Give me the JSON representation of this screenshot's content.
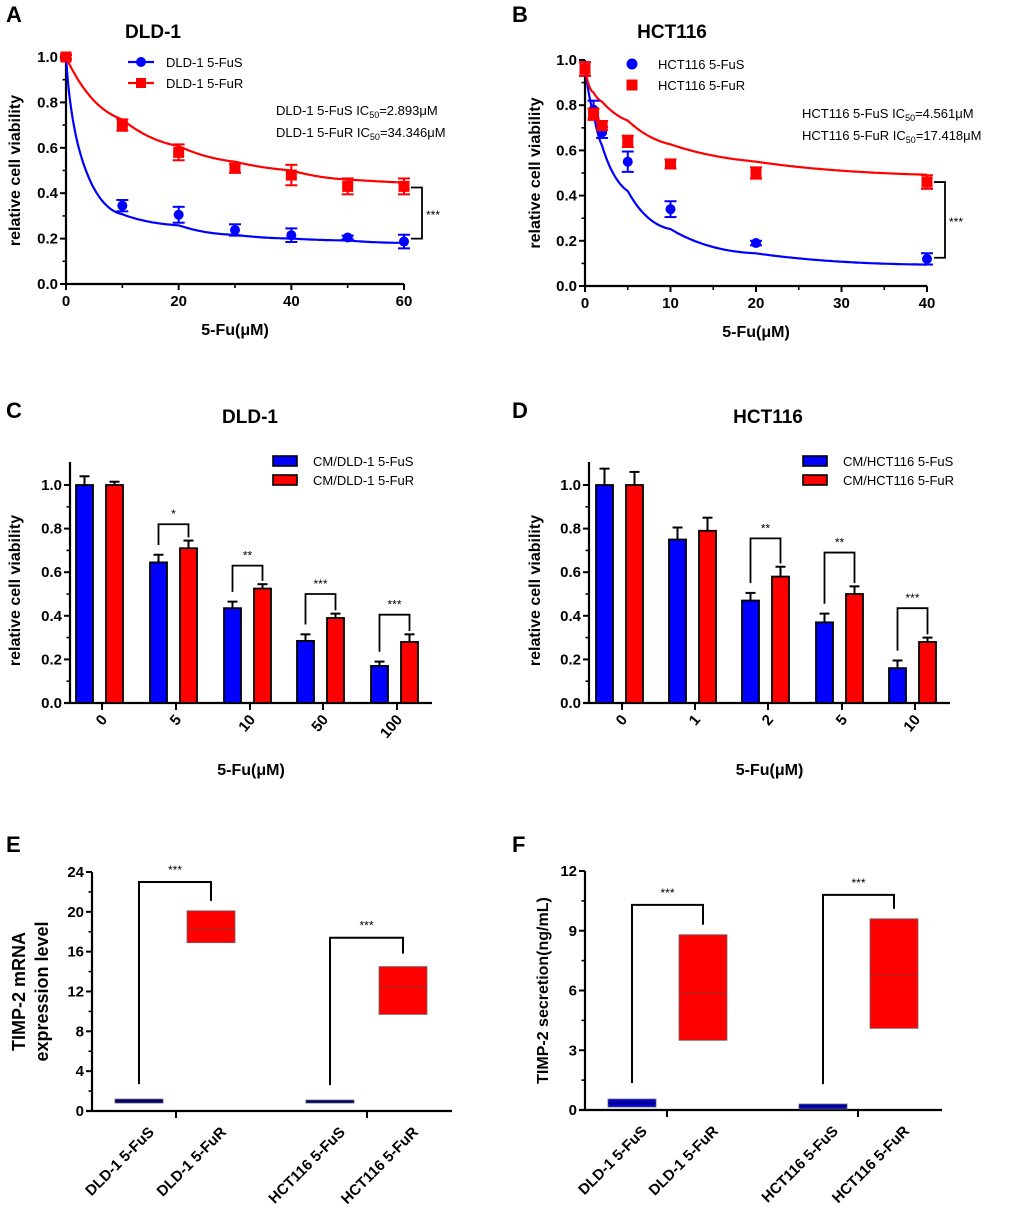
{
  "chart_data": [
    {
      "panel": "A",
      "type": "line",
      "title": "DLD-1",
      "xlabel": "5-Fu(μM)",
      "ylabel": "relative cell viability",
      "xlim": [
        0,
        60
      ],
      "ylim": [
        0,
        1.0
      ],
      "xticks": [
        "0",
        "20",
        "40",
        "60"
      ],
      "xtick_values": [
        0,
        20,
        40,
        60
      ],
      "xminor_values": [
        10,
        30,
        50
      ],
      "yticks": [
        "0.0",
        "0.2",
        "0.4",
        "0.6",
        "0.8",
        "1.0"
      ],
      "ytick_values": [
        0,
        0.2,
        0.4,
        0.6,
        0.8,
        1.0
      ],
      "legend_placement": "top-center",
      "legend_style": "line-marker",
      "x": [
        0,
        10,
        20,
        30,
        40,
        50,
        60
      ],
      "series": [
        {
          "name": "DLD-1 5-FuS",
          "color": "#0000ff",
          "marker": "circle",
          "values": [
            1.0,
            0.345,
            0.305,
            0.238,
            0.215,
            0.205,
            0.187
          ],
          "errors": [
            0.01,
            0.025,
            0.035,
            0.025,
            0.03,
            0.008,
            0.03
          ],
          "fit_ic50": 2.893,
          "fit_bottom": 0.15
        },
        {
          "name": "DLD-1 5-FuR",
          "color": "#ff0000",
          "marker": "square",
          "values": [
            1.0,
            0.7,
            0.58,
            0.51,
            0.48,
            0.43,
            0.43
          ],
          "errors": [
            0.01,
            0.025,
            0.035,
            0.02,
            0.045,
            0.035,
            0.035
          ],
          "fit_ic50": 34.346,
          "fit_bottom": 0.28
        }
      ],
      "annotations": [
        {
          "prefix": "DLD-1 5-FuS IC",
          "sub": "50",
          "suffix": "=2.893μM"
        },
        {
          "prefix": "DLD-1 5-FuR IC",
          "sub": "50",
          "suffix": "=34.346μM"
        }
      ],
      "significance": {
        "label": "***",
        "between": "last points",
        "y1": 0.425,
        "y2": 0.2
      }
    },
    {
      "panel": "B",
      "type": "line",
      "title": "HCT116",
      "xlabel": "5-Fu(μM)",
      "ylabel": "relative cell viability",
      "xlim": [
        0,
        40
      ],
      "ylim": [
        0,
        1.0
      ],
      "xticks": [
        "0",
        "10",
        "20",
        "30",
        "40"
      ],
      "xtick_values": [
        0,
        10,
        20,
        30,
        40
      ],
      "xminor_values": [
        5,
        15,
        25,
        35
      ],
      "yticks": [
        "0.0",
        "0.2",
        "0.4",
        "0.6",
        "0.8",
        "1.0"
      ],
      "ytick_values": [
        0,
        0.2,
        0.4,
        0.6,
        0.8,
        1.0
      ],
      "legend_placement": "top-center",
      "legend_style": "marker-only",
      "x": [
        0,
        1,
        2,
        5,
        10,
        20,
        40
      ],
      "series": [
        {
          "name": "HCT116 5-FuS",
          "color": "#0000ff",
          "marker": "circle",
          "values": [
            0.96,
            0.78,
            0.68,
            0.55,
            0.34,
            0.19,
            0.12
          ],
          "errors": [
            0.03,
            0.04,
            0.025,
            0.045,
            0.035,
            0.01,
            0.025
          ],
          "fit_ic50": 4.561,
          "fit_bottom": 0.05
        },
        {
          "name": "HCT116 5-FuR",
          "color": "#ff0000",
          "marker": "square",
          "values": [
            0.96,
            0.76,
            0.71,
            0.64,
            0.54,
            0.5,
            0.46
          ],
          "errors": [
            0.03,
            0.025,
            0.02,
            0.025,
            0.02,
            0.025,
            0.03
          ],
          "fit_ic50": 17.418,
          "fit_bottom": 0.45
        }
      ],
      "annotations": [
        {
          "prefix": "HCT116 5-FuS IC",
          "sub": "50",
          "suffix": "=4.561μM"
        },
        {
          "prefix": "HCT116 5-FuR IC",
          "sub": "50",
          "suffix": "=17.418μM"
        }
      ],
      "significance": {
        "label": "***",
        "between": "last points",
        "y1": 0.46,
        "y2": 0.125
      }
    },
    {
      "panel": "C",
      "type": "bar",
      "title": "DLD-1",
      "xlabel": "5-Fu(μM)",
      "ylabel": "relative cell viability",
      "categories": [
        "0",
        "5",
        "10",
        "50",
        "100"
      ],
      "ylim": [
        0,
        1.1
      ],
      "yticks": [
        "0.0",
        "0.2",
        "0.4",
        "0.6",
        "0.8",
        "1.0"
      ],
      "ytick_values": [
        0,
        0.2,
        0.4,
        0.6,
        0.8,
        1.0
      ],
      "legend_placement": "top-right",
      "series": [
        {
          "name": "CM/DLD-1 5-FuS",
          "color": "#0000ff",
          "values": [
            1.0,
            0.645,
            0.435,
            0.285,
            0.17
          ],
          "errors": [
            0.04,
            0.035,
            0.03,
            0.03,
            0.02
          ]
        },
        {
          "name": "CM/DLD-1 5-FuR",
          "color": "#ff0000",
          "values": [
            1.0,
            0.71,
            0.525,
            0.39,
            0.28
          ],
          "errors": [
            0.015,
            0.035,
            0.02,
            0.02,
            0.035
          ]
        }
      ],
      "significance": [
        {
          "category": "5",
          "label": "*",
          "y": 0.82
        },
        {
          "category": "10",
          "label": "**",
          "y": 0.63
        },
        {
          "category": "50",
          "label": "***",
          "y": 0.5
        },
        {
          "category": "100",
          "label": "***",
          "y": 0.405
        }
      ]
    },
    {
      "panel": "D",
      "type": "bar",
      "title": "HCT116",
      "xlabel": "5-Fu(μM)",
      "ylabel": "relative cell viability",
      "categories": [
        "0",
        "1",
        "2",
        "5",
        "10"
      ],
      "ylim": [
        0,
        1.1
      ],
      "yticks": [
        "0.0",
        "0.2",
        "0.4",
        "0.6",
        "0.8",
        "1.0"
      ],
      "ytick_values": [
        0,
        0.2,
        0.4,
        0.6,
        0.8,
        1.0
      ],
      "legend_placement": "top-right",
      "series": [
        {
          "name": "CM/HCT116 5-FuS",
          "color": "#0000ff",
          "values": [
            1.0,
            0.75,
            0.47,
            0.37,
            0.16
          ],
          "errors": [
            0.075,
            0.055,
            0.035,
            0.04,
            0.035
          ]
        },
        {
          "name": "CM/HCT116 5-FuR",
          "color": "#ff0000",
          "values": [
            1.0,
            0.79,
            0.58,
            0.5,
            0.28
          ],
          "errors": [
            0.06,
            0.06,
            0.045,
            0.035,
            0.02
          ]
        }
      ],
      "significance": [
        {
          "category": "2",
          "label": "**",
          "y": 0.755
        },
        {
          "category": "5",
          "label": "**",
          "y": 0.69
        },
        {
          "category": "10",
          "label": "***",
          "y": 0.435
        }
      ]
    },
    {
      "panel": "E",
      "type": "box",
      "title": "",
      "xlabel": "",
      "ylabel_lines": [
        "TIMP-2 mRNA",
        "expression level"
      ],
      "ylim": [
        0,
        24
      ],
      "yticks": [
        "0",
        "4",
        "8",
        "12",
        "16",
        "20",
        "24"
      ],
      "ytick_values": [
        0,
        4,
        8,
        12,
        16,
        20,
        24
      ],
      "categories": [
        "DLD-1  5-FuS",
        "DLD-1 5-FuR",
        "HCT116 5-FuS",
        "HCT116 5-FuR"
      ],
      "boxes": [
        {
          "category": "DLD-1  5-FuS",
          "color": "#000080",
          "q1": 0.8,
          "median": 1.0,
          "q3": 1.2
        },
        {
          "category": "DLD-1 5-FuR",
          "color": "#ff0000",
          "q1": 16.9,
          "median": 18.3,
          "q3": 20.1
        },
        {
          "category": "HCT116 5-FuS",
          "color": "#000080",
          "q1": 0.8,
          "median": 0.95,
          "q3": 1.1
        },
        {
          "category": "HCT116 5-FuR",
          "color": "#ff0000",
          "q1": 9.7,
          "median": 12.4,
          "q3": 14.5
        }
      ],
      "significance": [
        {
          "from": 0,
          "to": 1,
          "label": "***",
          "y": 23.0,
          "left_end": 2.7,
          "right_end": 21.1
        },
        {
          "from": 2,
          "to": 3,
          "label": "***",
          "y": 17.4,
          "left_end": 2.6,
          "right_end": 15.8
        }
      ]
    },
    {
      "panel": "F",
      "type": "box",
      "title": "",
      "xlabel": "",
      "ylabel_lines": [
        "TIMP-2 secretion(ng/mL)"
      ],
      "ylim": [
        0,
        12
      ],
      "yticks": [
        "0",
        "3",
        "6",
        "9",
        "12"
      ],
      "ytick_values": [
        0,
        3,
        6,
        9,
        12
      ],
      "categories": [
        "DLD-1  5-FuS",
        "DLD-1 5-FuR",
        "HCT116 5-FuS",
        "HCT116 5-FuR"
      ],
      "boxes": [
        {
          "category": "DLD-1  5-FuS",
          "color": "#0000cc",
          "q1": 0.15,
          "median": 0.35,
          "q3": 0.55
        },
        {
          "category": "DLD-1 5-FuR",
          "color": "#ff0000",
          "q1": 3.5,
          "median": 5.9,
          "q3": 8.8
        },
        {
          "category": "HCT116 5-FuS",
          "color": "#0000cc",
          "q1": 0.05,
          "median": 0.2,
          "q3": 0.3
        },
        {
          "category": "HCT116 5-FuR",
          "color": "#ff0000",
          "q1": 4.1,
          "median": 6.75,
          "q3": 9.6
        }
      ],
      "significance": [
        {
          "from": 0,
          "to": 1,
          "label": "***",
          "y": 10.3,
          "left_end": 1.35,
          "right_end": 9.3
        },
        {
          "from": 2,
          "to": 3,
          "label": "***",
          "y": 10.8,
          "left_end": 1.3,
          "right_end": 10.1
        }
      ]
    }
  ]
}
